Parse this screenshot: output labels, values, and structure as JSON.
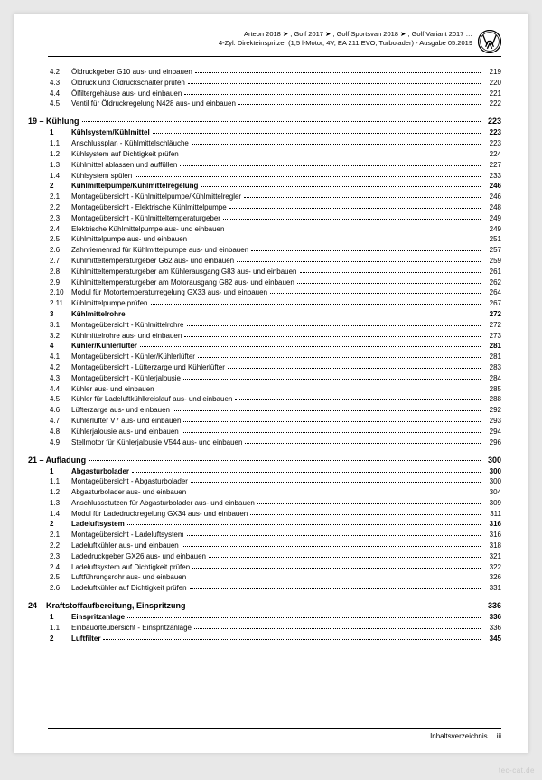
{
  "header": {
    "line1": "Arteon 2018 ➤ , Golf 2017 ➤ , Golf Sportsvan 2018 ➤ , Golf Variant 2017 …",
    "line2": "4-Zyl. Direkteinspritzer (1,5 l-Motor, 4V, EA 211 EVO, Turbolader) - Ausgabe 05.2019"
  },
  "preItems": [
    {
      "num": "4.2",
      "label": "Öldruckgeber G10 aus- und einbauen",
      "page": "219"
    },
    {
      "num": "4.3",
      "label": "Öldruck und Öldruckschalter prüfen",
      "page": "220"
    },
    {
      "num": "4.4",
      "label": "Ölfiltergehäuse aus- und einbauen",
      "page": "221"
    },
    {
      "num": "4.5",
      "label": "Ventil für Öldruckregelung N428 aus- und einbauen",
      "page": "222"
    }
  ],
  "chapters": [
    {
      "title": "19 – Kühlung",
      "page": "223",
      "items": [
        {
          "num": "1",
          "label": "Kühlsystem/Kühlmittel",
          "page": "223",
          "bold": true
        },
        {
          "num": "1.1",
          "label": "Anschlussplan - Kühlmittelschläuche",
          "page": "223"
        },
        {
          "num": "1.2",
          "label": "Kühlsystem auf Dichtigkeit prüfen",
          "page": "224"
        },
        {
          "num": "1.3",
          "label": "Kühlmittel ablassen und auffüllen",
          "page": "227"
        },
        {
          "num": "1.4",
          "label": "Kühlsystem spülen",
          "page": "233"
        },
        {
          "num": "2",
          "label": "Kühlmittelpumpe/Kühlmittelregelung",
          "page": "246",
          "bold": true
        },
        {
          "num": "2.1",
          "label": "Montageübersicht - Kühlmittelpumpe/Kühlmittelregler",
          "page": "246"
        },
        {
          "num": "2.2",
          "label": "Montageübersicht - Elektrische Kühlmittelpumpe",
          "page": "248"
        },
        {
          "num": "2.3",
          "label": "Montageübersicht - Kühlmitteltemperaturgeber",
          "page": "249"
        },
        {
          "num": "2.4",
          "label": "Elektrische Kühlmittelpumpe aus- und einbauen",
          "page": "249"
        },
        {
          "num": "2.5",
          "label": "Kühlmittelpumpe aus- und einbauen",
          "page": "251"
        },
        {
          "num": "2.6",
          "label": "Zahnriemenrad für Kühlmittelpumpe aus- und einbauen",
          "page": "257"
        },
        {
          "num": "2.7",
          "label": "Kühlmitteltemperaturgeber G62 aus- und einbauen",
          "page": "259"
        },
        {
          "num": "2.8",
          "label": "Kühlmitteltemperaturgeber am Kühlerausgang G83 aus- und einbauen",
          "page": "261"
        },
        {
          "num": "2.9",
          "label": "Kühlmitteltemperaturgeber am Motorausgang G82 aus- und einbauen",
          "page": "262"
        },
        {
          "num": "2.10",
          "label": "Modul für Motortemperaturregelung GX33 aus- und einbauen",
          "page": "264"
        },
        {
          "num": "2.11",
          "label": "Kühlmittelpumpe prüfen",
          "page": "267"
        },
        {
          "num": "3",
          "label": "Kühlmittelrohre",
          "page": "272",
          "bold": true
        },
        {
          "num": "3.1",
          "label": "Montageübersicht - Kühlmittelrohre",
          "page": "272"
        },
        {
          "num": "3.2",
          "label": "Kühlmittelrohre aus- und einbauen",
          "page": "273"
        },
        {
          "num": "4",
          "label": "Kühler/Kühlerlüfter",
          "page": "281",
          "bold": true
        },
        {
          "num": "4.1",
          "label": "Montageübersicht - Kühler/Kühlerlüfter",
          "page": "281"
        },
        {
          "num": "4.2",
          "label": "Montageübersicht - Lüfterzarge und Kühlerlüfter",
          "page": "283"
        },
        {
          "num": "4.3",
          "label": "Montageübersicht - Kühlerjalousie",
          "page": "284"
        },
        {
          "num": "4.4",
          "label": "Kühler aus- und einbauen",
          "page": "285"
        },
        {
          "num": "4.5",
          "label": "Kühler für Ladeluftkühlkreislauf aus- und einbauen",
          "page": "288"
        },
        {
          "num": "4.6",
          "label": "Lüfterzarge aus- und einbauen",
          "page": "292"
        },
        {
          "num": "4.7",
          "label": "Kühlerlüfter V7 aus- und einbauen",
          "page": "293"
        },
        {
          "num": "4.8",
          "label": "Kühlerjalousie aus- und einbauen",
          "page": "294"
        },
        {
          "num": "4.9",
          "label": "Stellmotor für Kühlerjalousie V544 aus- und einbauen",
          "page": "296"
        }
      ]
    },
    {
      "title": "21 – Aufladung",
      "page": "300",
      "items": [
        {
          "num": "1",
          "label": "Abgasturbolader",
          "page": "300",
          "bold": true
        },
        {
          "num": "1.1",
          "label": "Montageübersicht - Abgasturbolader",
          "page": "300"
        },
        {
          "num": "1.2",
          "label": "Abgasturbolader aus- und einbauen",
          "page": "304"
        },
        {
          "num": "1.3",
          "label": "Anschlussstutzen für Abgasturbolader aus- und einbauen",
          "page": "309"
        },
        {
          "num": "1.4",
          "label": "Modul für Ladedruckregelung GX34 aus- und einbauen",
          "page": "311"
        },
        {
          "num": "2",
          "label": "Ladeluftsystem",
          "page": "316",
          "bold": true
        },
        {
          "num": "2.1",
          "label": "Montageübersicht - Ladeluftsystem",
          "page": "316"
        },
        {
          "num": "2.2",
          "label": "Ladeluftkühler aus- und einbauen",
          "page": "318"
        },
        {
          "num": "2.3",
          "label": "Ladedruckgeber GX26 aus- und einbauen",
          "page": "321"
        },
        {
          "num": "2.4",
          "label": "Ladeluftsystem auf Dichtigkeit prüfen",
          "page": "322"
        },
        {
          "num": "2.5",
          "label": "Luftführungsrohr aus- und einbauen",
          "page": "326"
        },
        {
          "num": "2.6",
          "label": "Ladeluftkühler auf Dichtigkeit prüfen",
          "page": "331"
        }
      ]
    },
    {
      "title": "24 – Kraftstoffaufbereitung, Einspritzung",
      "page": "336",
      "items": [
        {
          "num": "1",
          "label": "Einspritzanlage",
          "page": "336",
          "bold": true
        },
        {
          "num": "1.1",
          "label": "Einbauorteübersicht - Einspritzanlage",
          "page": "336"
        },
        {
          "num": "2",
          "label": "Luftfilter",
          "page": "345",
          "bold": true
        }
      ]
    }
  ],
  "footer": {
    "label": "Inhaltsverzeichnis",
    "page": "iii"
  },
  "watermark": "tec-cat.de"
}
